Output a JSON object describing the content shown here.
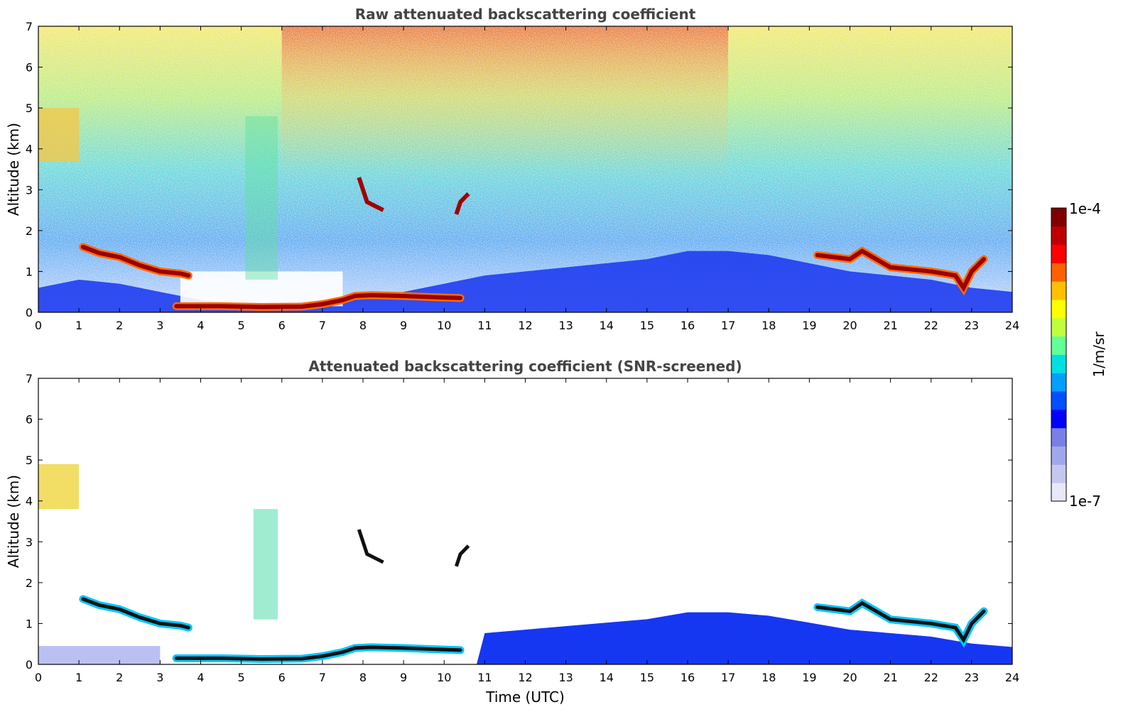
{
  "chart_data": [
    {
      "type": "heatmap",
      "title": "Raw attenuated backscattering coefficient",
      "ylabel": "Altitude (km)",
      "xlabel": "",
      "xlim": [
        0,
        24
      ],
      "ylim": [
        0,
        7
      ],
      "x_ticks": [
        "0",
        "1",
        "2",
        "3",
        "4",
        "5",
        "6",
        "7",
        "8",
        "9",
        "10",
        "11",
        "12",
        "13",
        "14",
        "15",
        "16",
        "17",
        "18",
        "19",
        "20",
        "21",
        "22",
        "23",
        "24"
      ],
      "y_ticks": [
        "0",
        "1",
        "2",
        "3",
        "4",
        "5",
        "6",
        "7"
      ],
      "features": [
        {
          "name": "boundary layer",
          "x": [
            0,
            1,
            2,
            3,
            4,
            5,
            6,
            7,
            8,
            9,
            10,
            11,
            12,
            13,
            14,
            15,
            16,
            17,
            18,
            19,
            20,
            21,
            22,
            23,
            24
          ],
          "top_km": [
            0.6,
            0.8,
            0.7,
            0.5,
            0.3,
            0.2,
            0.2,
            0.3,
            0.4,
            0.5,
            0.7,
            0.9,
            1.0,
            1.1,
            1.2,
            1.3,
            1.5,
            1.5,
            1.4,
            1.2,
            1.0,
            0.9,
            0.8,
            0.6,
            0.5
          ]
        },
        {
          "name": "cloud layer A",
          "x": [
            1.1,
            1.5,
            2.0,
            2.5,
            3.0,
            3.5,
            3.7
          ],
          "alt_km": [
            1.6,
            1.45,
            1.35,
            1.15,
            1.0,
            0.95,
            0.9
          ]
        },
        {
          "name": "cloud layer B",
          "x": [
            3.4,
            4.5,
            5.5,
            6.5,
            7.0,
            7.5,
            7.8,
            8.2,
            9.0,
            9.8,
            10.4
          ],
          "alt_km": [
            0.15,
            0.15,
            0.13,
            0.14,
            0.2,
            0.3,
            0.4,
            0.42,
            0.4,
            0.37,
            0.35
          ]
        },
        {
          "name": "cloud layer C",
          "x": [
            19.2,
            19.6,
            20.0,
            20.3,
            21.0,
            21.5,
            22.0,
            22.6,
            22.8,
            23.0,
            23.3
          ],
          "alt_km": [
            1.4,
            1.35,
            1.3,
            1.5,
            1.1,
            1.05,
            1.0,
            0.9,
            0.6,
            1.0,
            1.3
          ]
        }
      ]
    },
    {
      "type": "heatmap",
      "title": "Attenuated backscattering coefficient (SNR-screened)",
      "ylabel": "Altitude (km)",
      "xlabel": "Time (UTC)",
      "xlim": [
        0,
        24
      ],
      "ylim": [
        0,
        7
      ],
      "x_ticks": [
        "0",
        "1",
        "2",
        "3",
        "4",
        "5",
        "6",
        "7",
        "8",
        "9",
        "10",
        "11",
        "12",
        "13",
        "14",
        "15",
        "16",
        "17",
        "18",
        "19",
        "20",
        "21",
        "22",
        "23",
        "24"
      ],
      "y_ticks": [
        "0",
        "1",
        "2",
        "3",
        "4",
        "5",
        "6",
        "7"
      ]
    }
  ],
  "colorbar": {
    "label": "1/m/sr",
    "max_label": "1e-4",
    "min_label": "1e-7",
    "scale": "log",
    "colors": [
      "#e8e8f8",
      "#c4c8f0",
      "#a0a8ec",
      "#7880e8",
      "#0000ff",
      "#0050ff",
      "#00a0ff",
      "#00e0e0",
      "#60ff98",
      "#c0ff40",
      "#ffff00",
      "#ffc000",
      "#ff6000",
      "#ff0000",
      "#c00000",
      "#800000"
    ]
  }
}
